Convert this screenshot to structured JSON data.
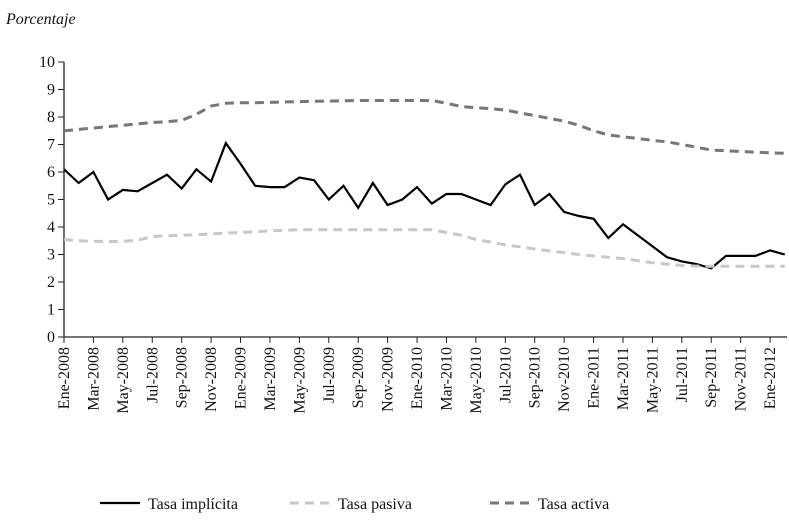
{
  "chart_data": {
    "type": "line",
    "y_label": "Porcentaje",
    "categories": [
      "Ene-2008",
      null,
      "Mar-2008",
      null,
      "May-2008",
      null,
      "Jul-2008",
      null,
      "Sep-2008",
      null,
      "Nov-2008",
      null,
      "Ene-2009",
      null,
      "Mar-2009",
      null,
      "May-2009",
      null,
      "Jul-2009",
      null,
      "Sep-2009",
      null,
      "Nov-2009",
      null,
      "Ene-2010",
      null,
      "Mar-2010",
      null,
      "May-2010",
      null,
      "Jul-2010",
      null,
      "Sep-2010",
      null,
      "Nov-2010",
      null,
      "Ene-2011",
      null,
      "Mar-2011",
      null,
      "May-2011",
      null,
      "Jul-2011",
      null,
      "Sep-2011",
      null,
      "Nov-2011",
      null,
      "Ene-2012",
      null
    ],
    "series": [
      {
        "name": "Tasa implícita",
        "color": "#000000",
        "line_style": "solid",
        "values": [
          6.1,
          5.6,
          6.0,
          5.0,
          5.35,
          5.3,
          5.6,
          5.9,
          5.4,
          6.1,
          5.65,
          7.05,
          6.3,
          5.5,
          5.45,
          5.45,
          5.8,
          5.7,
          5.0,
          5.5,
          4.7,
          5.6,
          4.8,
          5.0,
          5.45,
          4.85,
          5.2,
          5.2,
          5.0,
          4.8,
          5.55,
          5.9,
          4.8,
          5.2,
          4.55,
          4.4,
          4.3,
          3.6,
          4.1,
          3.7,
          3.3,
          2.9,
          2.75,
          2.65,
          2.5,
          2.95,
          2.95,
          2.95,
          3.15,
          3.0
        ]
      },
      {
        "name": "Tasa pasiva",
        "color": "#c8c8c8",
        "line_style": "dashed",
        "values": [
          3.55,
          3.5,
          3.48,
          3.47,
          3.48,
          3.52,
          3.65,
          3.68,
          3.7,
          3.72,
          3.75,
          3.78,
          3.8,
          3.83,
          3.86,
          3.88,
          3.9,
          3.9,
          3.9,
          3.9,
          3.9,
          3.9,
          3.9,
          3.9,
          3.9,
          3.9,
          3.8,
          3.7,
          3.55,
          3.45,
          3.35,
          3.28,
          3.2,
          3.13,
          3.07,
          3.0,
          2.95,
          2.9,
          2.85,
          2.78,
          2.7,
          2.65,
          2.6,
          2.58,
          2.57,
          2.57,
          2.57,
          2.57,
          2.57,
          2.57
        ]
      },
      {
        "name": "Tasa activa",
        "color": "#777777",
        "line_style": "dashed",
        "values": [
          7.5,
          7.55,
          7.6,
          7.65,
          7.7,
          7.75,
          7.8,
          7.83,
          7.88,
          8.1,
          8.4,
          8.5,
          8.52,
          8.52,
          8.53,
          8.55,
          8.56,
          8.57,
          8.58,
          8.59,
          8.6,
          8.6,
          8.6,
          8.6,
          8.6,
          8.6,
          8.5,
          8.38,
          8.34,
          8.3,
          8.25,
          8.15,
          8.05,
          7.95,
          7.85,
          7.7,
          7.5,
          7.35,
          7.28,
          7.22,
          7.15,
          7.1,
          7.0,
          6.9,
          6.8,
          6.77,
          6.75,
          6.72,
          6.7,
          6.68
        ]
      }
    ],
    "ylim": [
      0,
      10
    ],
    "yticks": [
      0,
      1,
      2,
      3,
      4,
      5,
      6,
      7,
      8,
      9,
      10
    ],
    "grid": false,
    "legend": "bottom"
  }
}
